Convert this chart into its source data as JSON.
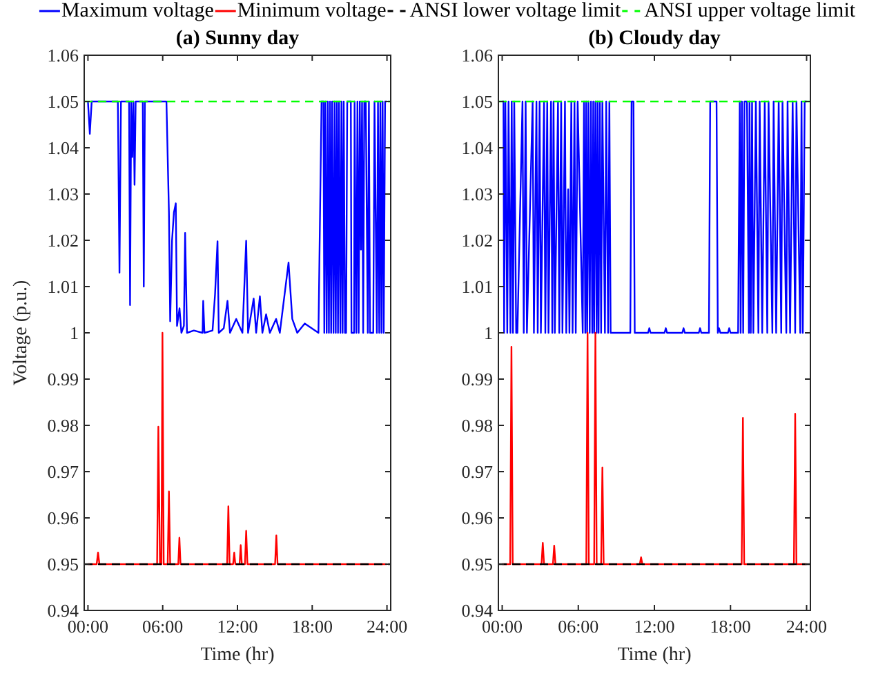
{
  "chart_data": [
    {
      "type": "line",
      "title": "(a) Sunny day",
      "xlabel": "Time (hr)",
      "ylabel": "Voltage (p.u.)",
      "legend": "top",
      "xlim": [
        -0.3,
        24.3
      ],
      "ylim": [
        0.94,
        1.06
      ],
      "xticks": [
        {
          "value": 0,
          "label": "00:00"
        },
        {
          "value": 6,
          "label": "06:00"
        },
        {
          "value": 12,
          "label": "12:00"
        },
        {
          "value": 18,
          "label": "18:00"
        },
        {
          "value": 24,
          "label": "24:00"
        }
      ],
      "yticks": [
        0.94,
        0.95,
        0.96,
        0.97,
        0.98,
        0.99,
        1,
        1.01,
        1.02,
        1.03,
        1.04,
        1.05,
        1.06
      ],
      "series": [
        {
          "name": "Maximum voltage",
          "color": "#0000ff",
          "x": [
            0,
            0.15,
            0.3,
            2.4,
            2.53,
            2.65,
            3.3,
            3.38,
            3.47,
            3.56,
            3.65,
            3.74,
            3.83,
            4.4,
            4.48,
            4.57,
            6.3,
            6.5,
            6.6,
            6.75,
            6.9,
            7.05,
            7.15,
            7.35,
            7.5,
            7.7,
            7.8,
            7.95,
            8.5,
            9.2,
            9.25,
            9.35,
            10.0,
            10.2,
            10.4,
            10.5,
            10.9,
            11.2,
            11.4,
            11.9,
            12.4,
            12.7,
            12.85,
            13.3,
            13.5,
            13.8,
            14.0,
            14.3,
            14.6,
            15.1,
            15.4,
            16.1,
            16.4,
            16.8,
            17.4,
            18.5,
            18.75,
            18.9,
            18.97,
            19.05,
            19.16,
            19.25,
            19.34,
            19.43,
            19.52,
            19.6,
            19.71,
            19.8,
            19.89,
            19.98,
            20.07,
            20.15,
            20.26,
            20.35,
            20.44,
            20.53,
            20.63,
            20.72,
            20.81,
            21.1,
            21.15,
            21.36,
            21.4,
            21.54,
            21.63,
            21.73,
            21.82,
            21.91,
            22.0,
            22.09,
            22.18,
            22.3,
            22.46,
            22.55,
            22.64,
            22.9,
            23.0,
            23.19,
            23.28,
            23.38,
            23.47,
            23.56,
            23.65,
            23.74,
            23.85,
            24
          ],
          "values": [
            1.05,
            1.043,
            1.05,
            1.05,
            1.013,
            1.05,
            1.05,
            1.006,
            1.05,
            1.038,
            1.05,
            1.032,
            1.05,
            1.05,
            1.01,
            1.05,
            1.05,
            1.026,
            1.0025,
            1.02,
            1.026,
            1.028,
            1.0015,
            1.0053,
            1.0,
            1.0015,
            1.0216,
            1.0,
            1.0005,
            1.0,
            1.0069,
            1.0,
            1.0005,
            1.0083,
            1.0198,
            1.0,
            1.001,
            1.0069,
            1.0,
            1.003,
            1.0,
            1.0199,
            1.0,
            1.0074,
            1.0,
            1.0079,
            1.0,
            1.004,
            1.0,
            1.003,
            1.0,
            1.0152,
            1.003,
            1.0,
            1.002,
            1.0,
            1.05,
            1.05,
            1.0,
            1.05,
            1.0,
            1.05,
            1.0,
            1.05,
            1.0,
            1.05,
            1.0,
            1.05,
            1.0,
            1.05,
            1.0,
            1.05,
            1.0,
            1.05,
            1.0,
            1.05,
            1.0,
            1.0,
            1.05,
            1.05,
            1.0,
            1.0,
            1.05,
            1.0,
            1.05,
            1.0,
            1.05,
            1.018,
            1.05,
            1.0,
            1.05,
            1.05,
            1.0,
            1.05,
            1.0,
            1.0,
            1.05,
            1.0,
            1.05,
            1.0,
            1.05,
            1.0,
            1.05,
            1.0,
            1.05,
            1.05
          ]
        },
        {
          "name": "Minimum voltage",
          "color": "#ff0000",
          "x": [
            0,
            0.7,
            0.81,
            0.92,
            5.55,
            5.65,
            5.78,
            5.9,
            5.98,
            6.08,
            6.4,
            6.5,
            6.6,
            7.25,
            7.34,
            7.43,
            11.17,
            11.27,
            11.37,
            11.65,
            11.74,
            11.83,
            12.17,
            12.26,
            12.35,
            12.6,
            12.7,
            12.8,
            15.02,
            15.12,
            15.22,
            24
          ],
          "values": [
            0.95,
            0.95,
            0.9525,
            0.95,
            0.95,
            0.9797,
            0.95,
            0.95,
            1.0,
            0.95,
            0.95,
            0.9657,
            0.95,
            0.95,
            0.9557,
            0.95,
            0.95,
            0.9625,
            0.95,
            0.95,
            0.9525,
            0.95,
            0.95,
            0.9541,
            0.95,
            0.95,
            0.9572,
            0.95,
            0.95,
            0.9562,
            0.95,
            0.95
          ]
        }
      ],
      "ref_lines": [
        {
          "axis": "y",
          "value": 0.95,
          "label": "ANSI lower voltage limit",
          "color": "#000000",
          "line_style": "dashed"
        },
        {
          "axis": "y",
          "value": 1.05,
          "label": "ANSI upper voltage limit",
          "color": "#00ff00",
          "line_style": "dashed"
        }
      ]
    },
    {
      "type": "line",
      "title": "(b) Cloudy day",
      "xlabel": "Time (hr)",
      "xlim": [
        -0.3,
        24.3
      ],
      "ylim": [
        0.94,
        1.06
      ],
      "xticks": [
        {
          "value": 0,
          "label": "00:00"
        },
        {
          "value": 6,
          "label": "06:00"
        },
        {
          "value": 12,
          "label": "12:00"
        },
        {
          "value": 18,
          "label": "18:00"
        },
        {
          "value": 24,
          "label": "24:00"
        }
      ],
      "yticks": [
        0.94,
        0.95,
        0.96,
        0.97,
        0.98,
        0.99,
        1,
        1.01,
        1.02,
        1.03,
        1.04,
        1.05,
        1.06
      ],
      "series": [
        {
          "color": "#0000ff",
          "x": [
            0,
            0.1,
            0.15,
            0.25,
            0.4,
            0.5,
            0.65,
            0.75,
            0.85,
            0.95,
            1.1,
            1.2,
            1.6,
            1.7,
            1.85,
            1.95,
            2.4,
            2.5,
            2.7,
            2.8,
            2.95,
            3.05,
            3.3,
            3.4,
            3.55,
            3.65,
            3.85,
            3.95,
            4.05,
            4.15,
            4.4,
            4.5,
            4.65,
            4.75,
            4.95,
            5.05,
            5.2,
            5.3,
            5.45,
            5.55,
            5.7,
            5.8,
            5.95,
            6.35,
            6.45,
            6.55,
            6.62,
            6.7,
            6.8,
            6.9,
            7.0,
            7.1,
            7.18,
            7.25,
            7.35,
            7.45,
            7.52,
            7.6,
            7.7,
            7.8,
            7.9,
            8.1,
            8.2,
            8.35,
            8.45,
            8.55,
            10.1,
            10.2,
            10.35,
            10.45,
            11.5,
            11.6,
            11.7,
            12.8,
            12.9,
            13.0,
            14.2,
            14.3,
            14.4,
            15.5,
            15.6,
            15.7,
            16.3,
            16.4,
            16.9,
            17.0,
            17.1,
            17.2,
            17.8,
            17.9,
            18.0,
            18.6,
            18.73,
            18.8,
            18.9,
            19.0,
            19.1,
            19.3,
            19.45,
            19.5,
            19.6,
            19.7,
            19.8,
            20.0,
            20.2,
            20.3,
            20.5,
            20.7,
            20.9,
            21.0,
            21.3,
            21.4,
            21.6,
            21.8,
            22.0,
            22.1,
            22.4,
            22.5,
            22.7,
            22.9,
            23.1,
            23.2,
            23.5,
            23.6,
            23.7,
            23.85,
            24
          ],
          "values": [
            1.05,
            1.05,
            1.0,
            1.05,
            1.0,
            1.05,
            1.0,
            1.05,
            1.0,
            1.05,
            1.0,
            1.0,
            1.05,
            1.0,
            1.05,
            1.0,
            1.05,
            1.0,
            1.05,
            1.0,
            1.05,
            1.0,
            1.05,
            1.0,
            1.05,
            1.0,
            1.05,
            1.0,
            1.05,
            1.0,
            1.05,
            1.0,
            1.05,
            1.0,
            1.05,
            1.0,
            1.031,
            1.0,
            1.05,
            1.0,
            1.05,
            1.0,
            1.05,
            1.0,
            1.05,
            1.0,
            1.05,
            1.0,
            1.05,
            1.0,
            1.05,
            1.0,
            1.05,
            1.0,
            1.05,
            1.0,
            1.05,
            1.0,
            1.05,
            1.0,
            1.05,
            1.0,
            1.05,
            1.0,
            1.05,
            1.0,
            1.0,
            1.05,
            1.05,
            1.0,
            1.0,
            1.001,
            1.0,
            1.0,
            1.001,
            1.0,
            1.0,
            1.001,
            1.0,
            1.0,
            1.001,
            1.0,
            1.0,
            1.05,
            1.05,
            1.0,
            1.001,
            1.0,
            1.0,
            1.001,
            1.0,
            1.0,
            1.05,
            1.0,
            1.05,
            1.0,
            1.05,
            1.05,
            1.0,
            1.05,
            1.0,
            1.05,
            1.0,
            1.05,
            1.0,
            1.05,
            1.0,
            1.05,
            1.0,
            1.05,
            1.0,
            1.05,
            1.0,
            1.05,
            1.0,
            1.05,
            1.0,
            1.05,
            1.0,
            1.05,
            1.0,
            1.05,
            1.0,
            1.05,
            1.0,
            1.05,
            1.05
          ]
        },
        {
          "color": "#ff0000",
          "x": [
            0,
            0.63,
            0.73,
            0.83,
            3.1,
            3.2,
            3.3,
            4.0,
            4.1,
            4.2,
            6.63,
            6.73,
            6.83,
            7.25,
            7.35,
            7.45,
            7.8,
            7.9,
            8.0,
            10.85,
            10.95,
            11.05,
            18.88,
            18.98,
            19.08,
            23.0,
            23.1,
            23.2,
            24
          ],
          "values": [
            0.95,
            0.95,
            0.997,
            0.95,
            0.95,
            0.9546,
            0.95,
            0.95,
            0.954,
            0.95,
            0.95,
            1.0,
            0.95,
            0.95,
            1.0,
            0.95,
            0.95,
            0.9709,
            0.95,
            0.95,
            0.9515,
            0.95,
            0.95,
            0.9816,
            0.95,
            0.95,
            0.9825,
            0.95,
            0.95
          ]
        }
      ],
      "ref_lines": [
        {
          "axis": "y",
          "value": 0.95,
          "color": "#000000",
          "line_style": "dashed"
        },
        {
          "axis": "y",
          "value": 1.05,
          "color": "#00ff00",
          "line_style": "dashed"
        }
      ]
    }
  ]
}
